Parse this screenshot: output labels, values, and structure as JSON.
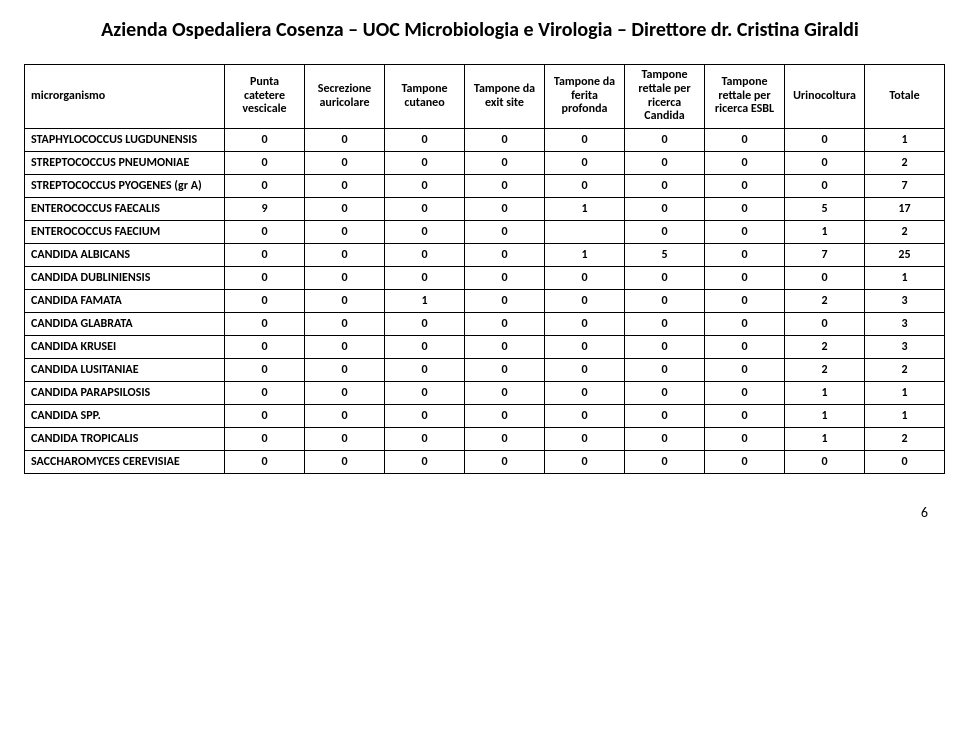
{
  "title": "Azienda Ospedaliera Cosenza – UOC Microbiologia e Virologia – Direttore dr. Cristina Giraldi",
  "page_number": "6",
  "columns": [
    "microrganismo",
    "Punta catetere vescicale",
    "Secrezione auricolare",
    "Tampone cutaneo",
    "Tampone da exit site",
    "Tampone da ferita profonda",
    "Tampone rettale per ricerca Candida",
    "Tampone rettale per ricerca ESBL",
    "Urinocoltura",
    "Totale"
  ],
  "rows": [
    {
      "label": "STAPHYLOCOCCUS LUGDUNENSIS",
      "v": [
        "0",
        "0",
        "0",
        "0",
        "0",
        "0",
        "0",
        "0",
        "1"
      ]
    },
    {
      "label": "STREPTOCOCCUS PNEUMONIAE",
      "v": [
        "0",
        "0",
        "0",
        "0",
        "0",
        "0",
        "0",
        "0",
        "2"
      ]
    },
    {
      "label": "STREPTOCOCCUS PYOGENES (gr A)",
      "v": [
        "0",
        "0",
        "0",
        "0",
        "0",
        "0",
        "0",
        "0",
        "7"
      ]
    },
    {
      "label": "ENTEROCOCCUS FAECALIS",
      "v": [
        "9",
        "0",
        "0",
        "0",
        "1",
        "0",
        "0",
        "5",
        "17"
      ]
    },
    {
      "label": "ENTEROCOCCUS FAECIUM",
      "v": [
        "0",
        "0",
        "0",
        "0",
        "",
        "0",
        "0",
        "1",
        "2"
      ]
    },
    {
      "label": "CANDIDA ALBICANS",
      "v": [
        "0",
        "0",
        "0",
        "0",
        "1",
        "5",
        "0",
        "7",
        "25"
      ]
    },
    {
      "label": "CANDIDA DUBLINIENSIS",
      "v": [
        "0",
        "0",
        "0",
        "0",
        "0",
        "0",
        "0",
        "0",
        "1"
      ]
    },
    {
      "label": "CANDIDA FAMATA",
      "v": [
        "0",
        "0",
        "1",
        "0",
        "0",
        "0",
        "0",
        "2",
        "3"
      ]
    },
    {
      "label": "CANDIDA GLABRATA",
      "v": [
        "0",
        "0",
        "0",
        "0",
        "0",
        "0",
        "0",
        "0",
        "3"
      ]
    },
    {
      "label": "CANDIDA KRUSEI",
      "v": [
        "0",
        "0",
        "0",
        "0",
        "0",
        "0",
        "0",
        "2",
        "3"
      ]
    },
    {
      "label": "CANDIDA LUSITANIAE",
      "v": [
        "0",
        "0",
        "0",
        "0",
        "0",
        "0",
        "0",
        "2",
        "2"
      ]
    },
    {
      "label": "CANDIDA PARAPSILOSIS",
      "v": [
        "0",
        "0",
        "0",
        "0",
        "0",
        "0",
        "0",
        "1",
        "1"
      ]
    },
    {
      "label": "CANDIDA SPP.",
      "v": [
        "0",
        "0",
        "0",
        "0",
        "0",
        "0",
        "0",
        "1",
        "1"
      ]
    },
    {
      "label": "CANDIDA TROPICALIS",
      "v": [
        "0",
        "0",
        "0",
        "0",
        "0",
        "0",
        "0",
        "1",
        "2"
      ]
    },
    {
      "label": "SACCHAROMYCES CEREVISIAE",
      "v": [
        "0",
        "0",
        "0",
        "0",
        "0",
        "0",
        "0",
        "0",
        "0"
      ]
    }
  ]
}
